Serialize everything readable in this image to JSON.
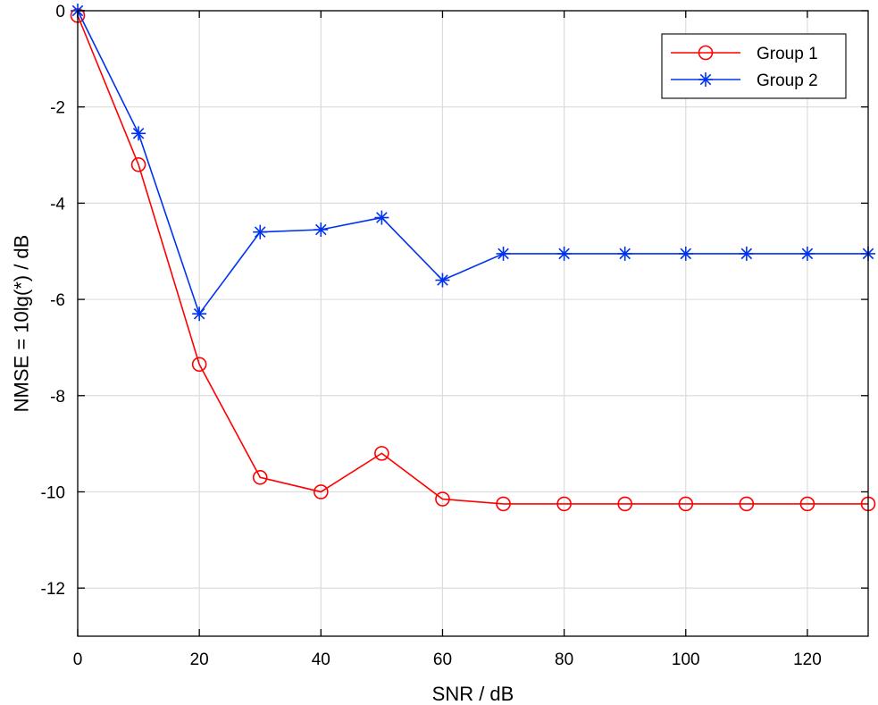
{
  "chart_data": {
    "type": "line",
    "xlabel": "SNR / dB",
    "ylabel": "NMSE = 10lg(*)  / dB",
    "xlim": [
      0,
      130
    ],
    "ylim": [
      -13,
      0
    ],
    "xticks": [
      0,
      20,
      40,
      60,
      80,
      100,
      120
    ],
    "yticks": [
      0,
      -2,
      -4,
      -6,
      -8,
      -10,
      -12
    ],
    "grid": true,
    "legend_position": "top-right",
    "x": [
      0,
      10,
      20,
      30,
      40,
      50,
      60,
      70,
      80,
      90,
      100,
      110,
      120,
      130
    ],
    "series": [
      {
        "name": "Group 1",
        "color": "#ff0000",
        "marker": "circle",
        "values": [
          -0.1,
          -3.2,
          -7.35,
          -9.7,
          -10.0,
          -9.2,
          -10.15,
          -10.25,
          -10.25,
          -10.25,
          -10.25,
          -10.25,
          -10.25,
          -10.25
        ]
      },
      {
        "name": "Group 2",
        "color": "#0033ee",
        "marker": "asterisk",
        "values": [
          0.0,
          -2.55,
          -6.3,
          -4.6,
          -4.55,
          -4.3,
          -5.6,
          -5.05,
          -5.05,
          -5.05,
          -5.05,
          -5.05,
          -5.05,
          -5.05
        ]
      }
    ]
  }
}
